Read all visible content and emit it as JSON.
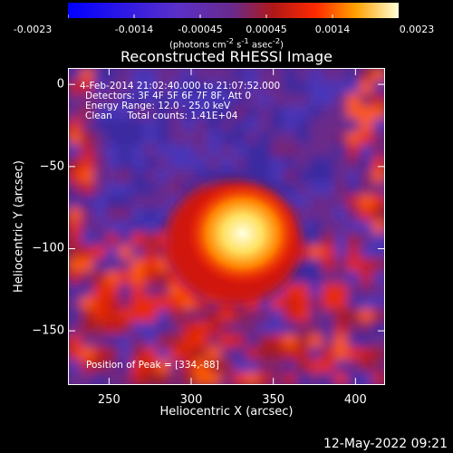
{
  "colorbar": {
    "ticks": [
      "-0.0023",
      "-0.0014",
      "-0.00045",
      "0.00045",
      "0.0014",
      "0.0023"
    ],
    "label_prefix": "(photons cm",
    "label_exp1": "-2",
    "label_mid": " s",
    "label_exp2": "-1",
    "label_mid2": " asec",
    "label_exp3": "-2",
    "label_suffix": ")",
    "range": [
      -0.0023,
      0.0023
    ]
  },
  "annotations": {
    "time_range": "4-Feb-2014 21:02:40.000 to 21:07:52.000",
    "detectors": "Detectors: 3F 4F 5F 6F 7F 8F, Att 0",
    "energy": "Energy Range: 12.0 - 25.0 keV",
    "clean": "Clean     Total counts: 1.41E+04",
    "peak": "Position of Peak = [334,-88]"
  },
  "timestamp": "12-May-2022 09:21",
  "chart_data": {
    "type": "heatmap",
    "title": "Reconstructed RHESSI Image",
    "xlabel": "Heliocentric X (arcsec)",
    "ylabel": "Heliocentric Y (arcsec)",
    "xlim": [
      225,
      418
    ],
    "ylim": [
      -183,
      10
    ],
    "xticks": [
      250,
      300,
      350,
      400
    ],
    "yticks": [
      0,
      -50,
      -100,
      -150
    ],
    "xtick_labels": [
      "250",
      "300",
      "350",
      "400"
    ],
    "ytick_labels": [
      "0",
      "−50",
      "−100",
      "−150"
    ],
    "colormap": "red-temperature diverging (blue negative, purple near zero, red-yellow-white positive)",
    "peak_position": [
      334,
      -88
    ],
    "peak_value": 0.0023
  }
}
